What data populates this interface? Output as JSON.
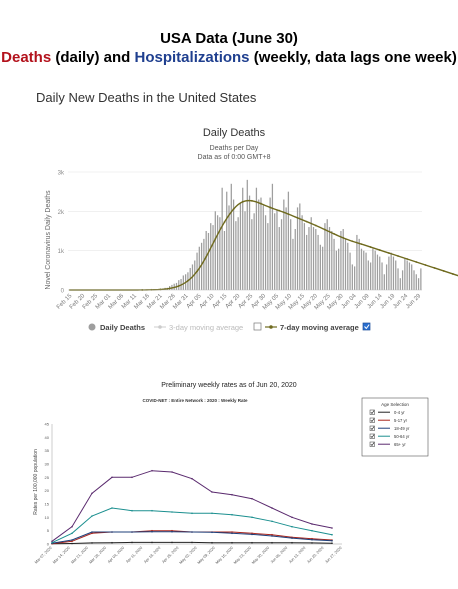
{
  "header": {
    "title_line1": "USA Data (June 30)",
    "deaths_word": "Deaths",
    "daily_word": " (daily) and ",
    "hosp_word": "Hospitalizations",
    "weekly_text": " (weekly, data lags one week)"
  },
  "section_title": "Daily New Deaths in the United States",
  "colors": {
    "bar": "#9e9e9e",
    "moving_avg": "#6f6a1e",
    "weekly_series": [
      "#222222",
      "#a9241b",
      "#1e3f7a",
      "#1b8f8f",
      "#5a2a6e"
    ]
  },
  "chart_data": [
    {
      "type": "bar",
      "title": "Daily Deaths",
      "subtitle": "Deaths per Day",
      "subtitle2": "Data as of 0:00 GMT+8",
      "ylabel": "Novel Coronavirus Daily Deaths",
      "y_ticks": [
        "0",
        "1k",
        "2k",
        "3k"
      ],
      "ylim": [
        0,
        3000
      ],
      "x_ticks": [
        "Feb 15",
        "Feb 20",
        "Feb 25",
        "Mar 01",
        "Mar 06",
        "Mar 11",
        "Mar 16",
        "Mar 21",
        "Mar 26",
        "Mar 31",
        "Apr 05",
        "Apr 10",
        "Apr 15",
        "Apr 20",
        "Apr 25",
        "Apr 30",
        "May 05",
        "May 10",
        "May 15",
        "May 20",
        "May 25",
        "May 30",
        "Jun 04",
        "Jun 09",
        "Jun 14",
        "Jun 19",
        "Jun 24",
        "Jun 29"
      ],
      "start_date": "Feb 15",
      "daily_deaths": [
        0,
        0,
        0,
        0,
        0,
        0,
        0,
        0,
        0,
        0,
        0,
        0,
        0,
        0,
        0,
        0,
        0,
        0,
        0,
        0,
        0,
        0,
        0,
        0,
        0,
        0,
        0,
        0,
        0,
        1,
        1,
        2,
        3,
        4,
        5,
        8,
        9,
        10,
        16,
        23,
        25,
        40,
        55,
        57,
        100,
        130,
        160,
        180,
        250,
        280,
        370,
        400,
        450,
        560,
        650,
        750,
        950,
        1100,
        1200,
        1300,
        1500,
        1450,
        1700,
        1650,
        2000,
        1900,
        1850,
        2600,
        1500,
        2500,
        2150,
        2700,
        2300,
        1750,
        1850,
        2200,
        2600,
        2000,
        2800,
        2400,
        1800,
        1950,
        2600,
        2300,
        2350,
        2150,
        1900,
        1700,
        2350,
        2700,
        1950,
        2050,
        1600,
        1800,
        2300,
        2100,
        2500,
        1800,
        1300,
        1550,
        2100,
        2200,
        1900,
        1700,
        1400,
        1600,
        1850,
        1600,
        1550,
        1400,
        1150,
        1100,
        1700,
        1800,
        1600,
        1500,
        1300,
        1000,
        1050,
        1500,
        1550,
        1300,
        1200,
        950,
        650,
        600,
        1400,
        1300,
        1050,
        1000,
        950,
        750,
        700,
        1050,
        1000,
        900,
        850,
        700,
        400,
        650,
        850,
        950,
        850,
        750,
        550,
        300,
        500,
        800,
        750,
        700,
        650,
        500,
        400,
        300,
        550
      ],
      "moving_average_7day": [
        0,
        0,
        0,
        0,
        0,
        0,
        0,
        0,
        0,
        0,
        0,
        0,
        0,
        0,
        0,
        0,
        0,
        0,
        0,
        0,
        0,
        0,
        0,
        0,
        0,
        0,
        0,
        0,
        0,
        0,
        0,
        1,
        1,
        2,
        3,
        4,
        5,
        6,
        8,
        10,
        14,
        18,
        24,
        31,
        40,
        51,
        65,
        81,
        102,
        127,
        157,
        193,
        234,
        282,
        338,
        402,
        474,
        555,
        643,
        740,
        845,
        955,
        1068,
        1183,
        1298,
        1410,
        1520,
        1625,
        1725,
        1818,
        1905,
        1985,
        2057,
        2120,
        2172,
        2212,
        2242,
        2262,
        2272,
        2273,
        2267,
        2255,
        2238,
        2217,
        2194,
        2170,
        2146,
        2122,
        2099,
        2077,
        2056,
        2036,
        2016,
        1996,
        1975,
        1953,
        1930,
        1906,
        1882,
        1858,
        1834,
        1810,
        1786,
        1762,
        1738,
        1714,
        1690,
        1665,
        1640,
        1614,
        1588,
        1561,
        1534,
        1507,
        1480,
        1453,
        1426,
        1400,
        1374,
        1349,
        1325,
        1302,
        1280,
        1259,
        1239,
        1220,
        1202,
        1184,
        1166,
        1148,
        1130,
        1111,
        1092,
        1073,
        1054,
        1035,
        1016,
        997,
        978,
        959,
        940,
        921,
        902,
        883,
        864,
        845,
        826,
        807,
        788,
        769,
        750,
        731,
        712,
        693,
        674,
        655,
        636,
        617,
        598,
        579,
        560,
        541,
        522,
        503,
        484,
        465,
        446,
        427,
        408,
        389,
        370,
        351,
        332,
        313,
        294
      ],
      "legend": {
        "daily_deaths": "Daily Deaths",
        "moving_avg_hidden": "3-day moving average",
        "moving_avg_7": "7-day moving average"
      }
    },
    {
      "type": "line",
      "title": "Preliminary weekly rates as of Jun 20, 2020",
      "subtitle": "COVID-NET : Entire Network : 2020 : Weekly Rate",
      "ylabel": "Rates per 100,000 population",
      "x_ticks": [
        "Mar 07, 2020",
        "Mar 14, 2020",
        "Mar 21, 2020",
        "Mar 28, 2020",
        "Apr 04, 2020",
        "Apr 11, 2020",
        "Apr 18, 2020",
        "Apr 25, 2020",
        "May 02, 2020",
        "May 09, 2020",
        "May 16, 2020",
        "May 23, 2020",
        "May 30, 2020",
        "Jun 06, 2020",
        "Jun 13, 2020",
        "Jun 20, 2020",
        "Jun 27, 2020"
      ],
      "ylim": [
        0,
        45
      ],
      "legend_title": "Age Selection",
      "series": [
        {
          "name": "0-4 yr",
          "values": [
            0.1,
            0.2,
            0.4,
            0.5,
            0.6,
            0.6,
            0.6,
            0.6,
            0.5,
            0.5,
            0.5,
            0.5,
            0.5,
            0.4,
            0.3
          ]
        },
        {
          "name": "5-17 yr",
          "values": [
            0.1,
            1.0,
            4.0,
            4.5,
            4.5,
            5.0,
            5.0,
            4.5,
            4.5,
            4.5,
            4.0,
            3.5,
            2.5,
            2.0,
            1.5
          ]
        },
        {
          "name": "18-49 yr",
          "values": [
            0.3,
            1.5,
            4.5,
            4.5,
            4.5,
            4.6,
            4.6,
            4.5,
            4.4,
            4.0,
            3.6,
            3.0,
            2.2,
            1.6,
            1.2
          ]
        },
        {
          "name": "50-64 yr",
          "values": [
            0.5,
            4.0,
            10.5,
            13.5,
            12.5,
            12.5,
            12.0,
            11.5,
            11.5,
            11.0,
            10.0,
            8.5,
            6.5,
            5.0,
            3.5
          ]
        },
        {
          "name": "65+ yr",
          "values": [
            1.0,
            6.5,
            19.0,
            25.0,
            25.0,
            27.5,
            27.0,
            24.5,
            19.5,
            18.5,
            17.0,
            13.5,
            10.0,
            7.5,
            6.0
          ]
        }
      ]
    }
  ]
}
